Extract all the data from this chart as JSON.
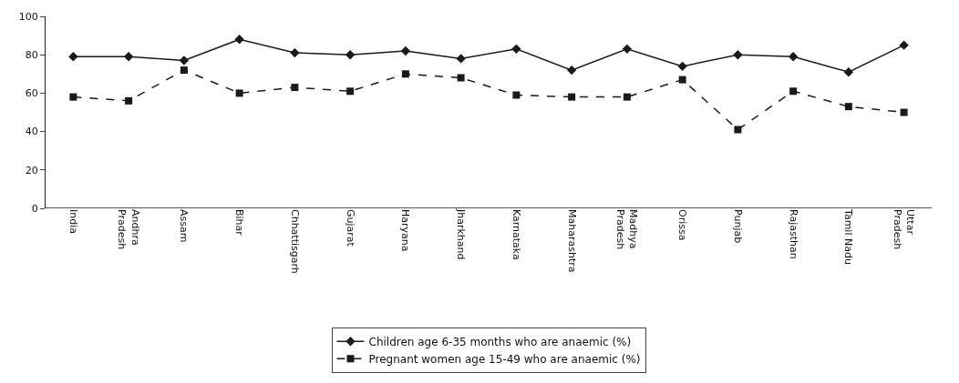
{
  "chart_data": {
    "type": "line",
    "categories": [
      "India",
      "Andhra\nPradesh",
      "Assam",
      "Bihar",
      "Chhattisgarh",
      "Gujarat",
      "Haryana",
      "Jharkhand",
      "Karnataka",
      "Maharashtra",
      "Madhya\nPradesh",
      "Orissa",
      "Punjab",
      "Rajasthan",
      "Tamil Nadu",
      "Uttar\nPradesh"
    ],
    "series": [
      {
        "name": "Children age 6-35 months who are anaemic (%)",
        "color": "#1a1a1a",
        "marker": "diamond",
        "line_style": "solid",
        "values": [
          79,
          79,
          77,
          88,
          81,
          80,
          82,
          78,
          83,
          72,
          83,
          74,
          80,
          79,
          71,
          85
        ]
      },
      {
        "name": "Pregnant women age 15-49 who are anaemic (%)",
        "color": "#1a1a1a",
        "marker": "square",
        "line_style": "dashed",
        "values": [
          58,
          56,
          72,
          60,
          63,
          61,
          70,
          68,
          59,
          58,
          58,
          67,
          41,
          61,
          53,
          50
        ]
      }
    ],
    "ylim": [
      0,
      100
    ],
    "yticks": [
      0,
      20,
      40,
      60,
      80,
      100
    ],
    "legend": "bottom"
  }
}
